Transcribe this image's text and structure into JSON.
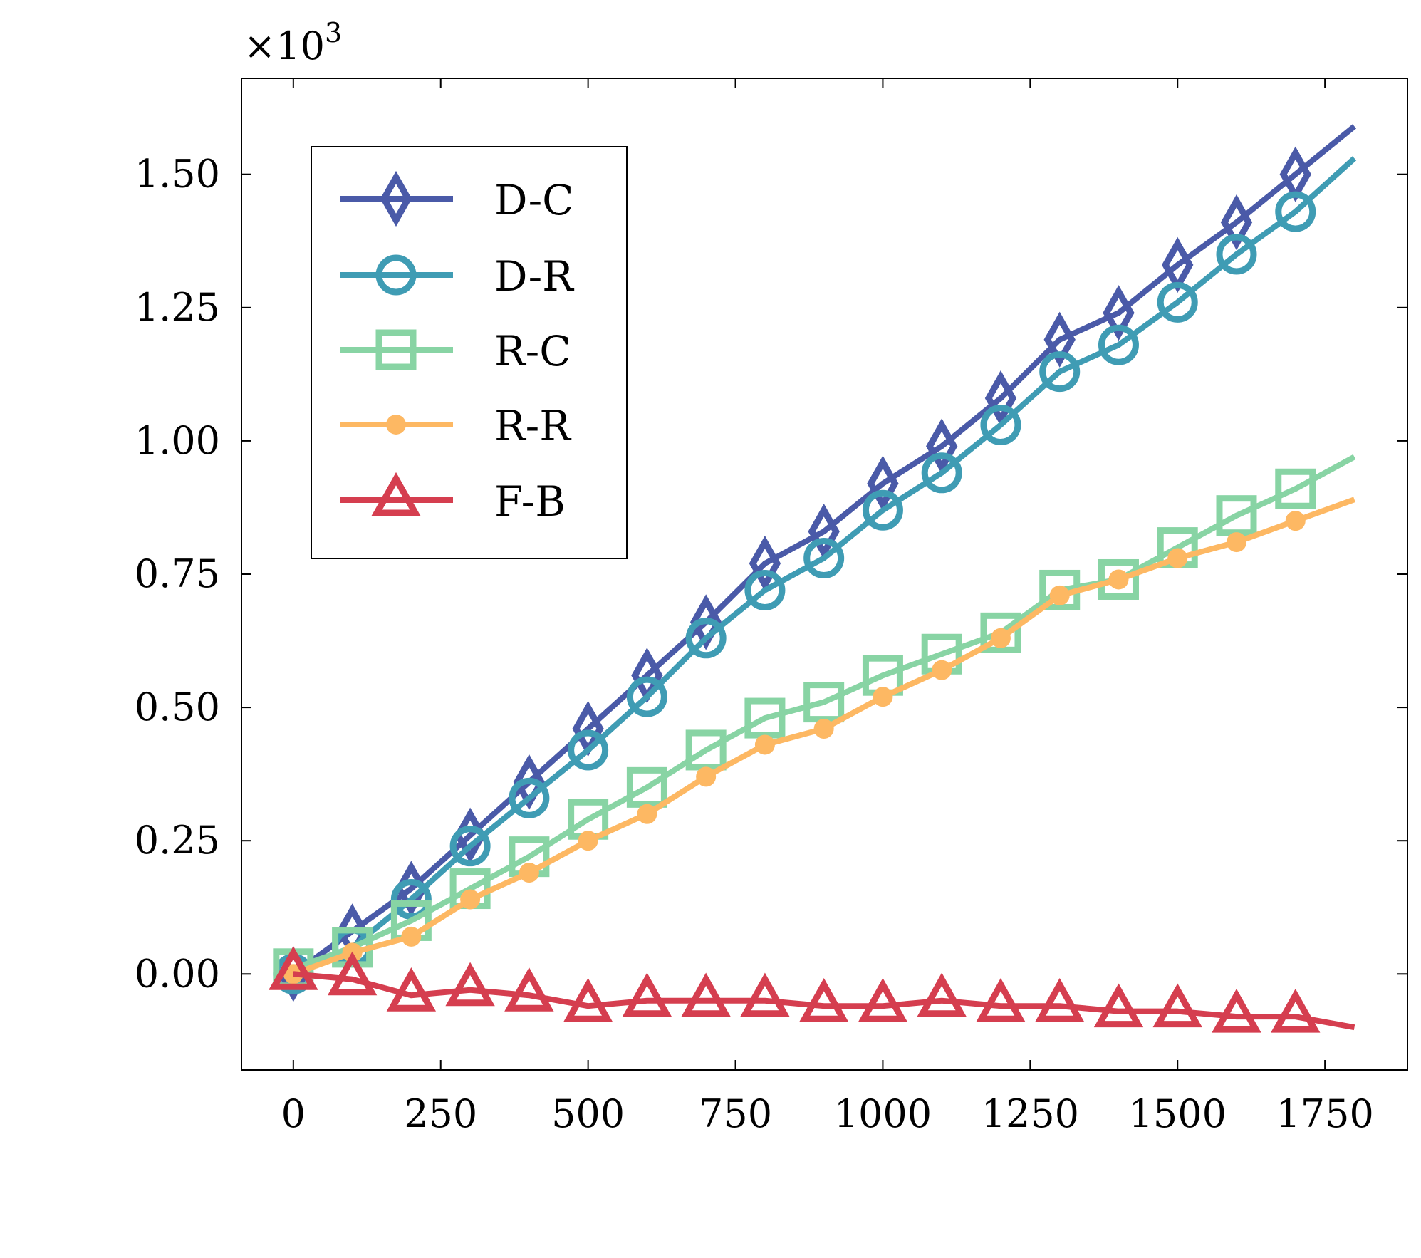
{
  "chart_data": {
    "type": "line",
    "title": "",
    "xlabel": "",
    "ylabel": "",
    "y_multiplier_label": "×10",
    "y_multiplier_exponent": "3",
    "xlim": [
      -88,
      1890
    ],
    "ylim": [
      -0.18,
      1.68
    ],
    "x_ticks": [
      0,
      250,
      500,
      750,
      1000,
      1250,
      1500,
      1750
    ],
    "x_tick_labels": [
      "0",
      "250",
      "500",
      "750",
      "1000",
      "1250",
      "1500",
      "1750"
    ],
    "y_ticks": [
      0,
      0.25,
      0.5,
      0.75,
      1.0,
      1.25,
      1.5
    ],
    "y_tick_labels": [
      "0.00",
      "0.25",
      "0.50",
      "0.75",
      "1.00",
      "1.25",
      "1.50"
    ],
    "grid": false,
    "legend_position": "top-left",
    "x": [
      0,
      100,
      200,
      300,
      400,
      500,
      600,
      700,
      800,
      900,
      1000,
      1100,
      1200,
      1300,
      1400,
      1500,
      1600,
      1700,
      1800
    ],
    "marker_every": 100,
    "marker_last_x": 1700,
    "series": [
      {
        "name": "D-C",
        "color": "#4a5aa8",
        "marker": "diamond",
        "values": [
          0.0,
          0.08,
          0.16,
          0.26,
          0.36,
          0.46,
          0.56,
          0.66,
          0.77,
          0.83,
          0.92,
          0.99,
          1.08,
          1.19,
          1.24,
          1.33,
          1.41,
          1.5,
          1.59
        ]
      },
      {
        "name": "D-R",
        "color": "#3f9cb4",
        "marker": "circle",
        "values": [
          0.0,
          0.05,
          0.14,
          0.24,
          0.33,
          0.42,
          0.52,
          0.63,
          0.72,
          0.78,
          0.87,
          0.94,
          1.03,
          1.13,
          1.18,
          1.26,
          1.35,
          1.43,
          1.53
        ]
      },
      {
        "name": "R-C",
        "color": "#88d4a4",
        "marker": "square",
        "values": [
          0.01,
          0.05,
          0.1,
          0.16,
          0.22,
          0.29,
          0.35,
          0.42,
          0.48,
          0.51,
          0.56,
          0.6,
          0.64,
          0.72,
          0.74,
          0.8,
          0.86,
          0.91,
          0.97
        ]
      },
      {
        "name": "R-R",
        "color": "#fdb863",
        "marker": "dot",
        "values": [
          0.0,
          0.04,
          0.07,
          0.14,
          0.19,
          0.25,
          0.3,
          0.37,
          0.43,
          0.46,
          0.52,
          0.57,
          0.63,
          0.71,
          0.74,
          0.78,
          0.81,
          0.85,
          0.89
        ]
      },
      {
        "name": "F-B",
        "color": "#d53e4f",
        "marker": "triangle",
        "values": [
          0.0,
          -0.01,
          -0.04,
          -0.03,
          -0.04,
          -0.06,
          -0.05,
          -0.05,
          -0.05,
          -0.06,
          -0.06,
          -0.05,
          -0.06,
          -0.06,
          -0.07,
          -0.07,
          -0.08,
          -0.08,
          -0.1
        ]
      }
    ]
  }
}
